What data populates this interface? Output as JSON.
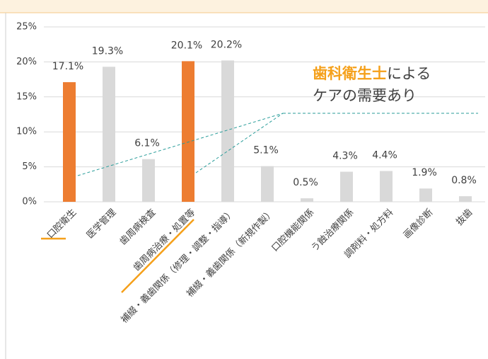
{
  "chart_data": {
    "type": "bar",
    "categories": [
      "口腔衛生",
      "医学管理",
      "歯周病検査",
      "歯周病治療・処置等",
      "補綴・義歯関係（修理・調整・指導）",
      "補綴・義歯関係（新規作製）",
      "口腔機能関係",
      "う蝕治療関係",
      "調剤料・処方料",
      "画像診断",
      "抜歯"
    ],
    "values": [
      17.1,
      19.3,
      6.1,
      20.1,
      20.2,
      5.1,
      0.5,
      4.3,
      4.4,
      1.9,
      0.8
    ],
    "value_labels": [
      "17.1%",
      "19.3%",
      "6.1%",
      "20.1%",
      "20.2%",
      "5.1%",
      "0.5%",
      "4.3%",
      "4.4%",
      "1.9%",
      "0.8%"
    ],
    "colors": [
      "#ed7d31",
      "#d9d9d9",
      "#d9d9d9",
      "#ed7d31",
      "#d9d9d9",
      "#d9d9d9",
      "#d9d9d9",
      "#d9d9d9",
      "#d9d9d9",
      "#d9d9d9",
      "#d9d9d9"
    ],
    "ylim": [
      0,
      25
    ],
    "yticks": [
      {
        "value": 0,
        "label": "0%"
      },
      {
        "value": 5,
        "label": "5%"
      },
      {
        "value": 10,
        "label": "10%"
      },
      {
        "value": 15,
        "label": "15%"
      },
      {
        "value": 20,
        "label": "20%"
      },
      {
        "value": 25,
        "label": "25%"
      }
    ],
    "grid": true,
    "annotation": {
      "highlight": "歯科衛生士",
      "text": "による",
      "line2": "ケアの需要あり"
    }
  }
}
